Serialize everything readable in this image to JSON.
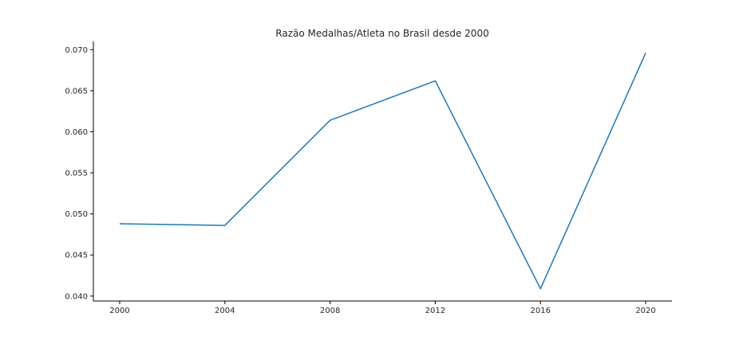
{
  "chart_data": {
    "type": "line",
    "title": "Razão Medalhas/Atleta no Brasil desde 2000",
    "xlabel": "",
    "ylabel": "",
    "x": [
      2000,
      2004,
      2008,
      2012,
      2016,
      2020
    ],
    "series": [
      {
        "values": [
          0.0488,
          0.0486,
          0.0614,
          0.0662,
          0.0409,
          0.0696
        ],
        "color": "#1f77b4"
      }
    ],
    "xlim": [
      1999.0,
      2021.0
    ],
    "ylim": [
      0.0394,
      0.071
    ],
    "xticks": [
      "2000",
      "2004",
      "2008",
      "2012",
      "2016",
      "2020"
    ],
    "xtick_values": [
      2000,
      2004,
      2008,
      2012,
      2016,
      2020
    ],
    "yticks": [
      "0.040",
      "0.045",
      "0.050",
      "0.055",
      "0.060",
      "0.065",
      "0.070"
    ],
    "ytick_values": [
      0.04,
      0.045,
      0.05,
      0.055,
      0.06,
      0.065,
      0.07
    ],
    "grid": false,
    "spines": "left-bottom"
  }
}
